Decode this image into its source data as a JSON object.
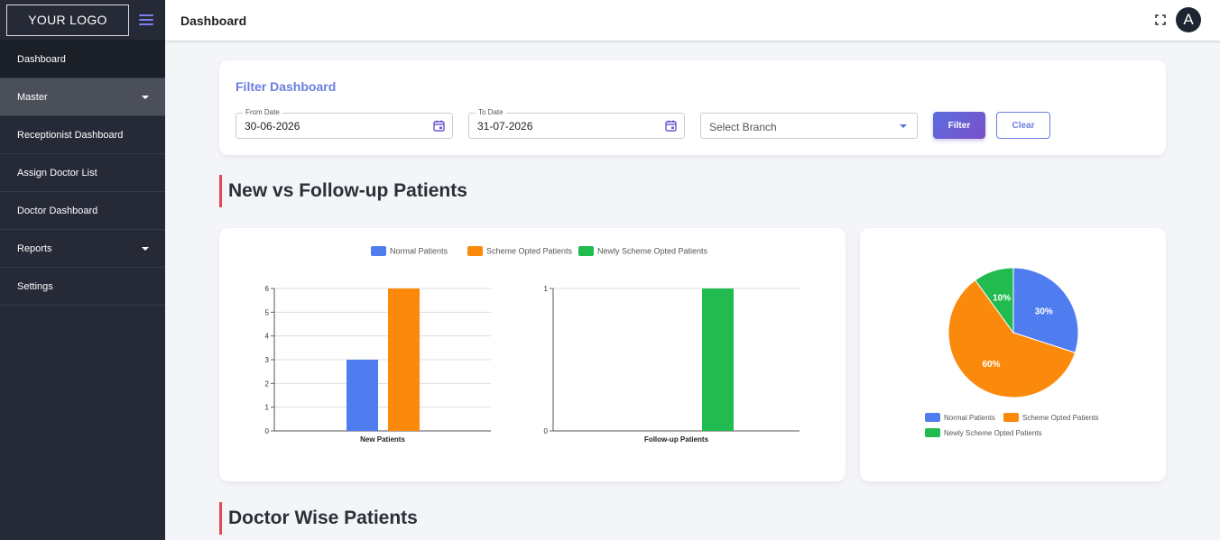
{
  "sidebar": {
    "logo": "YOUR LOGO",
    "items": [
      {
        "label": "Dashboard"
      },
      {
        "label": "Master"
      },
      {
        "label": "Receptionist Dashboard"
      },
      {
        "label": "Assign Doctor List"
      },
      {
        "label": "Doctor Dashboard"
      },
      {
        "label": "Reports"
      },
      {
        "label": "Settings"
      }
    ]
  },
  "header": {
    "title": "Dashboard",
    "avatar_letter": "A"
  },
  "filter": {
    "title": "Filter Dashboard",
    "from_label": "From Date",
    "from_value": "30-06-2026",
    "to_label": "To Date",
    "to_value": "31-07-2026",
    "branch_placeholder": "Select Branch",
    "filter_button": "Filter",
    "clear_button": "Clear"
  },
  "sections": {
    "new_vs_followup": "New vs Follow-up Patients",
    "doctor_wise": "Doctor Wise Patients"
  },
  "colors": {
    "normal": "#4f7df0",
    "scheme": "#fb8a0c",
    "newly_scheme": "#22bb4f",
    "accent": "#6a7ee0",
    "sidebar_bg": "#252a36"
  },
  "icons": [
    "menu-icon",
    "calendar-icon",
    "fullscreen-icon",
    "chevron-down-icon"
  ],
  "chart_data": [
    {
      "type": "bar",
      "categories": [
        "New Patients"
      ],
      "series": [
        {
          "name": "Normal Patients",
          "values": [
            3
          ]
        },
        {
          "name": "Scheme Opted Patients",
          "values": [
            6
          ]
        },
        {
          "name": "Newly Scheme Opted Patients",
          "values": [
            0
          ]
        }
      ],
      "ylim": [
        0,
        6
      ],
      "yticks": [
        "0",
        "1",
        "2",
        "3",
        "4",
        "5",
        "6"
      ],
      "legend": "top"
    },
    {
      "type": "bar",
      "categories": [
        "Follow-up Patients"
      ],
      "series": [
        {
          "name": "Normal Patients",
          "values": [
            0
          ]
        },
        {
          "name": "Scheme Opted Patients",
          "values": [
            0
          ]
        },
        {
          "name": "Newly Scheme Opted Patients",
          "values": [
            1
          ]
        }
      ],
      "ylim": [
        0,
        1
      ],
      "yticks": [
        "0",
        "1"
      ],
      "legend": "top"
    },
    {
      "type": "pie",
      "labels": [
        "Normal Patients",
        "Scheme Opted Patients",
        "Newly Scheme Opted Patients"
      ],
      "values": [
        30,
        60,
        10
      ],
      "value_labels": [
        "30%",
        "60%",
        "10%"
      ],
      "legend": "bottom"
    }
  ]
}
